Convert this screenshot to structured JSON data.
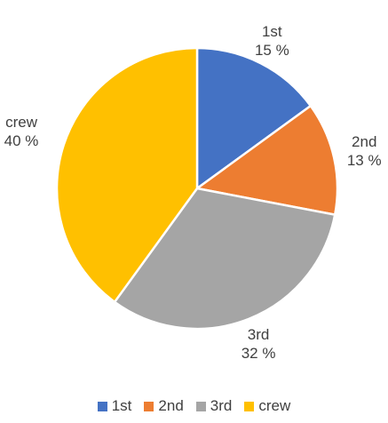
{
  "chart_data": {
    "type": "pie",
    "categories": [
      "1st",
      "2nd",
      "3rd",
      "crew"
    ],
    "values": [
      15,
      13,
      32,
      40
    ],
    "value_labels": [
      "15 %",
      "13 %",
      "32 %",
      "40 %"
    ],
    "colors": [
      "#4472C4",
      "#ED7D31",
      "#A5A5A5",
      "#FFC000"
    ],
    "legend_position": "bottom",
    "start": "top, clockwise"
  }
}
